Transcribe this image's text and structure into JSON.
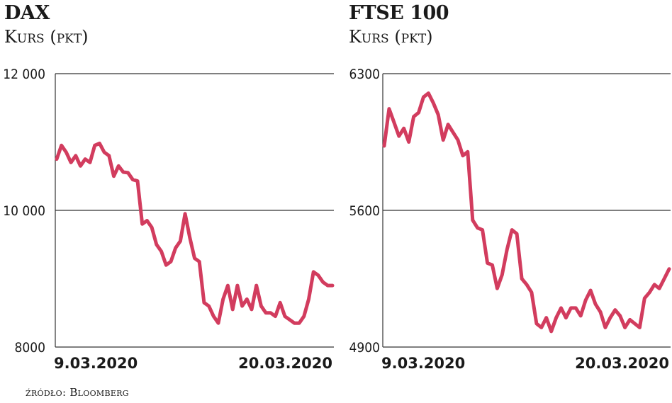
{
  "source_label": "źródło: Bloomberg",
  "chart_data": [
    {
      "type": "line",
      "title": "DAX",
      "subtitle": "Kurs (pkt)",
      "ylim": [
        8000,
        12000
      ],
      "yticks": [
        "12 000",
        "10 000",
        "8000"
      ],
      "ytick_values": [
        12000,
        10000,
        8000
      ],
      "xlabels": [
        "9.03.2020",
        "20.03.2020"
      ],
      "grid": "horizontal",
      "line_color": "#d23c5e",
      "series": [
        {
          "values": [
            10750,
            10950,
            10850,
            10700,
            10800,
            10650,
            10750,
            10700,
            10950,
            10980,
            10850,
            10800,
            10500,
            10650,
            10560,
            10550,
            10450,
            10430,
            9800,
            9850,
            9750,
            9500,
            9400,
            9200,
            9250,
            9450,
            9550,
            9950,
            9600,
            9300,
            9250,
            8650,
            8600,
            8450,
            8350,
            8700,
            8900,
            8550,
            8900,
            8600,
            8700,
            8550,
            8900,
            8600,
            8500,
            8500,
            8450,
            8650,
            8450,
            8400,
            8350,
            8350,
            8450,
            8700,
            9100,
            9050,
            8950,
            8900,
            8900
          ]
        }
      ]
    },
    {
      "type": "line",
      "title": "FTSE 100",
      "subtitle": "Kurs (pkt)",
      "ylim": [
        4900,
        6300
      ],
      "yticks": [
        "6300",
        "5600",
        "4900"
      ],
      "ytick_values": [
        6300,
        5600,
        4900
      ],
      "xlabels": [
        "9.03.2020",
        "20.03.2020"
      ],
      "grid": "horizontal",
      "line_color": "#d23c5e",
      "series": [
        {
          "values": [
            5930,
            6120,
            6050,
            5980,
            6020,
            5950,
            6080,
            6100,
            6180,
            6200,
            6150,
            6090,
            5960,
            6040,
            6000,
            5960,
            5880,
            5900,
            5550,
            5510,
            5500,
            5330,
            5320,
            5200,
            5270,
            5400,
            5500,
            5480,
            5250,
            5220,
            5180,
            5020,
            5000,
            5050,
            4980,
            5050,
            5100,
            5050,
            5100,
            5100,
            5060,
            5140,
            5190,
            5120,
            5080,
            5000,
            5050,
            5090,
            5060,
            5000,
            5040,
            5020,
            5000,
            5150,
            5180,
            5220,
            5200,
            5250,
            5300
          ]
        }
      ]
    }
  ]
}
